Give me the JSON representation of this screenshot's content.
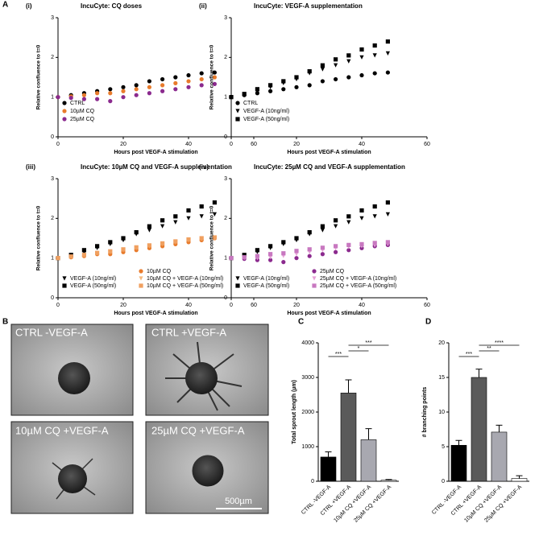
{
  "panel_letters": [
    "A",
    "B",
    "C",
    "D"
  ],
  "chart_data": [
    {
      "type": "scatter",
      "panel": "(i)",
      "title": "IncuCyte: CQ doses",
      "xlabel": "Hours post VEGF-A stimulation",
      "ylabel": "Relative confluence to t=0",
      "x": [
        0,
        4,
        8,
        12,
        16,
        20,
        24,
        28,
        32,
        36,
        40,
        44,
        48
      ],
      "xlim": [
        0,
        60
      ],
      "xticks": [
        0,
        20,
        40,
        60
      ],
      "ylim": [
        0,
        3
      ],
      "yticks": [
        0,
        1,
        2,
        3
      ],
      "series": [
        {
          "name": "CTRL",
          "color": "#000000",
          "marker": "circle",
          "values": [
            1.0,
            1.05,
            1.1,
            1.15,
            1.2,
            1.25,
            1.3,
            1.4,
            1.45,
            1.5,
            1.55,
            1.6,
            1.62
          ]
        },
        {
          "name": "10µM CQ",
          "color": "#e87b2c",
          "marker": "circle",
          "values": [
            1.0,
            1.02,
            1.05,
            1.1,
            1.1,
            1.15,
            1.2,
            1.25,
            1.3,
            1.35,
            1.4,
            1.45,
            1.5
          ]
        },
        {
          "name": "25µM CQ",
          "color": "#8b2a8e",
          "marker": "circle",
          "values": [
            1.0,
            0.98,
            0.95,
            0.95,
            0.9,
            1.0,
            1.05,
            1.1,
            1.15,
            1.2,
            1.25,
            1.3,
            1.33
          ]
        }
      ]
    },
    {
      "type": "scatter",
      "panel": "(ii)",
      "title": "IncuCyte: VEGF-A supplementation",
      "xlabel": "Hours post VEGF-A stimulation",
      "ylabel": "Relative confluence to t=0",
      "x": [
        0,
        4,
        8,
        12,
        16,
        20,
        24,
        28,
        32,
        36,
        40,
        44,
        48
      ],
      "xlim": [
        0,
        60
      ],
      "xticks": [
        0,
        20,
        40,
        60
      ],
      "ylim": [
        0,
        3
      ],
      "yticks": [
        0,
        1,
        2,
        3
      ],
      "series": [
        {
          "name": "CTRL",
          "color": "#000000",
          "marker": "circle",
          "values": [
            1.0,
            1.05,
            1.1,
            1.15,
            1.2,
            1.25,
            1.3,
            1.4,
            1.45,
            1.5,
            1.55,
            1.6,
            1.62
          ]
        },
        {
          "name": "VEGF-A (10ng/ml)",
          "color": "#000000",
          "marker": "triangle",
          "values": [
            1.0,
            1.05,
            1.15,
            1.25,
            1.35,
            1.45,
            1.6,
            1.7,
            1.8,
            1.9,
            2.0,
            2.05,
            2.1
          ]
        },
        {
          "name": "VEGF-A (50ng/ml)",
          "color": "#000000",
          "marker": "square",
          "values": [
            1.0,
            1.08,
            1.2,
            1.3,
            1.4,
            1.5,
            1.65,
            1.8,
            1.95,
            2.05,
            2.2,
            2.3,
            2.4
          ]
        }
      ]
    },
    {
      "type": "scatter",
      "panel": "(iii)",
      "title": "IncuCyte: 10µM CQ and VEGF-A supplementation",
      "xlabel": "Hours post VEGF-A stimulation",
      "ylabel": "Relative confluence to t=0",
      "x": [
        0,
        4,
        8,
        12,
        16,
        20,
        24,
        28,
        32,
        36,
        40,
        44,
        48
      ],
      "xlim": [
        0,
        60
      ],
      "xticks": [
        0,
        20,
        40,
        60
      ],
      "ylim": [
        0,
        3
      ],
      "yticks": [
        0,
        1,
        2,
        3
      ],
      "series": [
        {
          "name": "10µM CQ",
          "color": "#e87b2c",
          "marker": "circle",
          "values": [
            1.0,
            1.02,
            1.05,
            1.1,
            1.1,
            1.15,
            1.2,
            1.25,
            1.3,
            1.35,
            1.4,
            1.45,
            1.5
          ]
        },
        {
          "name": "VEGF-A (10ng/ml)",
          "color": "#000000",
          "marker": "triangle",
          "values": [
            1.0,
            1.05,
            1.15,
            1.25,
            1.35,
            1.45,
            1.6,
            1.7,
            1.8,
            1.9,
            2.0,
            2.05,
            2.1
          ]
        },
        {
          "name": "VEGF-A (50ng/ml)",
          "color": "#000000",
          "marker": "square",
          "values": [
            1.0,
            1.08,
            1.2,
            1.3,
            1.4,
            1.5,
            1.65,
            1.8,
            1.95,
            2.05,
            2.2,
            2.3,
            2.4
          ]
        },
        {
          "name": "10µM CQ + VEGF-A (10ng/ml)",
          "color": "#f5b97e",
          "marker": "triangle",
          "values": [
            1.0,
            1.03,
            1.07,
            1.12,
            1.15,
            1.2,
            1.25,
            1.3,
            1.35,
            1.4,
            1.45,
            1.48,
            1.5
          ]
        },
        {
          "name": "10µM CQ + VEGF-A (50ng/ml)",
          "color": "#f0a060",
          "marker": "square",
          "values": [
            1.0,
            1.04,
            1.08,
            1.13,
            1.17,
            1.22,
            1.27,
            1.32,
            1.37,
            1.42,
            1.47,
            1.5,
            1.52
          ]
        }
      ]
    },
    {
      "type": "scatter",
      "panel": "(iv)",
      "title": "IncuCyte: 25µM CQ and VEGF-A supplementation",
      "xlabel": "Hours post VEGF-A stimulation",
      "ylabel": "Relative confluence to t=0",
      "x": [
        0,
        4,
        8,
        12,
        16,
        20,
        24,
        28,
        32,
        36,
        40,
        44,
        48
      ],
      "xlim": [
        0,
        60
      ],
      "xticks": [
        0,
        20,
        40,
        60
      ],
      "ylim": [
        0,
        3
      ],
      "yticks": [
        0,
        1,
        2,
        3
      ],
      "series": [
        {
          "name": "25µM CQ",
          "color": "#8b2a8e",
          "marker": "circle",
          "values": [
            1.0,
            0.98,
            0.95,
            0.95,
            0.9,
            1.0,
            1.05,
            1.1,
            1.15,
            1.2,
            1.25,
            1.3,
            1.33
          ]
        },
        {
          "name": "VEGF-A (10ng/ml)",
          "color": "#000000",
          "marker": "triangle",
          "values": [
            1.0,
            1.05,
            1.15,
            1.25,
            1.35,
            1.45,
            1.6,
            1.7,
            1.8,
            1.9,
            2.0,
            2.05,
            2.1
          ]
        },
        {
          "name": "VEGF-A (50ng/ml)",
          "color": "#000000",
          "marker": "square",
          "values": [
            1.0,
            1.08,
            1.2,
            1.3,
            1.4,
            1.5,
            1.65,
            1.8,
            1.95,
            2.05,
            2.2,
            2.3,
            2.4
          ]
        },
        {
          "name": "25µM CQ + VEGF-A (10ng/ml)",
          "color": "#e8a3d8",
          "marker": "triangle",
          "values": [
            1.0,
            1.0,
            1.0,
            1.02,
            1.05,
            1.1,
            1.15,
            1.2,
            1.25,
            1.28,
            1.3,
            1.32,
            1.35
          ]
        },
        {
          "name": "25µM CQ + VEGF-A (50ng/ml)",
          "color": "#c878c0",
          "marker": "square",
          "values": [
            1.0,
            1.02,
            1.05,
            1.1,
            1.12,
            1.18,
            1.22,
            1.26,
            1.3,
            1.33,
            1.35,
            1.38,
            1.4
          ]
        }
      ]
    },
    {
      "type": "bar",
      "ylabel": "Total sprout length (µm)",
      "categories": [
        "CTRL -VEGF-A",
        "CTRL +VEGF-A",
        "10µM CQ +VEGF-A",
        "25µM CQ +VEGF-A"
      ],
      "values": [
        700,
        2550,
        1200,
        30
      ],
      "errors": [
        150,
        380,
        320,
        20
      ],
      "colors": [
        "#000000",
        "#5a5a5a",
        "#a8a8b0",
        "#ffffff"
      ],
      "ylim": [
        0,
        4000
      ],
      "yticks": [
        0,
        1000,
        2000,
        3000,
        4000
      ],
      "annotations": [
        {
          "text": "***",
          "from": 0,
          "to": 1
        },
        {
          "text": "*",
          "from": 1,
          "to": 2
        },
        {
          "text": "***",
          "from": 1,
          "to": 3
        }
      ]
    },
    {
      "type": "bar",
      "ylabel": "# branching points",
      "categories": [
        "CTRL -VEGF-A",
        "CTRL +VEGF-A",
        "10µM CQ +VEGF-A",
        "25µM CQ +VEGF-A"
      ],
      "values": [
        5.2,
        15,
        7.1,
        0.4
      ],
      "errors": [
        0.7,
        1.2,
        1.0,
        0.4
      ],
      "colors": [
        "#000000",
        "#5a5a5a",
        "#a8a8b0",
        "#ffffff"
      ],
      "ylim": [
        0,
        20
      ],
      "yticks": [
        0,
        5,
        10,
        15,
        20
      ],
      "annotations": [
        {
          "text": "***",
          "from": 0,
          "to": 1
        },
        {
          "text": "**",
          "from": 1,
          "to": 2
        },
        {
          "text": "****",
          "from": 1,
          "to": 3
        }
      ]
    }
  ],
  "images": {
    "labels": [
      "CTRL -VEGF-A",
      "CTRL +VEGF-A",
      "10µM CQ +VEGF-A",
      "25µM CQ +VEGF-A"
    ],
    "scale_bar": "500µm"
  }
}
